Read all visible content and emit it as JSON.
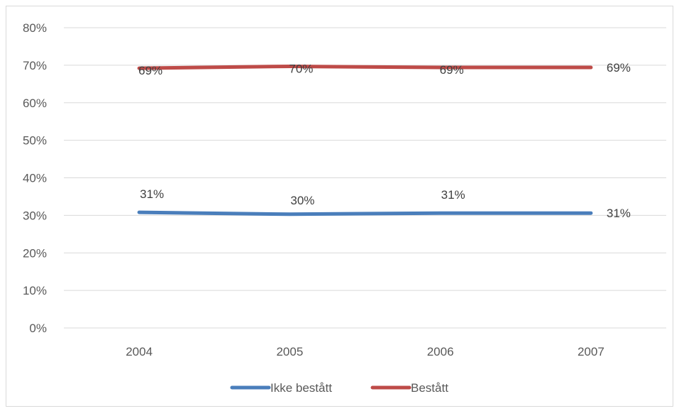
{
  "chart_data": {
    "type": "line",
    "title": "",
    "xlabel": "",
    "ylabel": "",
    "categories": [
      "2004",
      "2005",
      "2006",
      "2007"
    ],
    "ylim": [
      0,
      80
    ],
    "y_ticks": [
      0,
      10,
      20,
      30,
      40,
      50,
      60,
      70,
      80
    ],
    "y_tick_format": "percent",
    "grid": "horizontal",
    "legend_position": "bottom",
    "series": [
      {
        "name": "Ikke bestått",
        "color": "#4a7ebb",
        "values": [
          30.8,
          30.3,
          30.6,
          30.6
        ],
        "labels": [
          "31%",
          "30%",
          "31%",
          "31%"
        ]
      },
      {
        "name": "Bestått",
        "color": "#be4b48",
        "values": [
          69.2,
          69.7,
          69.4,
          69.4
        ],
        "labels": [
          "69%",
          "70%",
          "69%",
          "69%"
        ]
      }
    ]
  }
}
